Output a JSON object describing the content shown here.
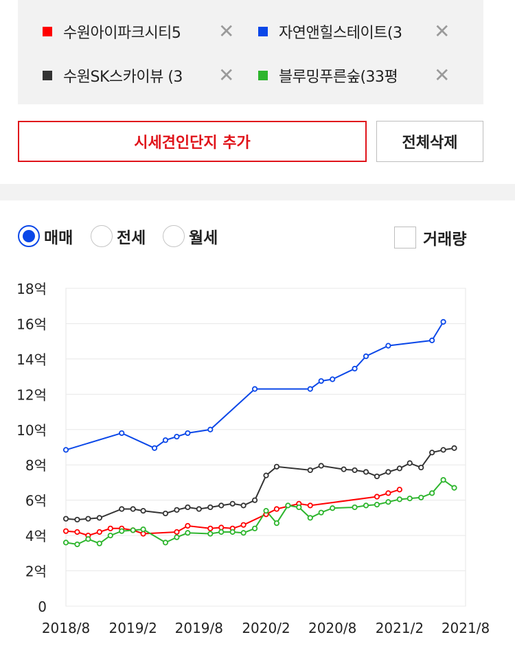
{
  "compare": {
    "items": [
      {
        "name": "수원아이파크시티5",
        "color": "#ff0000",
        "close_icon": "close-icon"
      },
      {
        "name": "자연앤힐스테이트(3",
        "color": "#0a47e8",
        "close_icon": "close-icon"
      },
      {
        "name": "수원SK스카이뷰 (3",
        "color": "#333333",
        "close_icon": "close-icon"
      },
      {
        "name": "블루밍푸른숲(33평",
        "color": "#2db52d",
        "close_icon": "close-icon"
      }
    ],
    "close_glyph": "✕"
  },
  "buttons": {
    "add_label": "시세견인단지 추가",
    "delete_all_label": "전체삭제"
  },
  "options": {
    "radios": [
      {
        "label": "매매",
        "selected": true
      },
      {
        "label": "전세",
        "selected": false
      },
      {
        "label": "월세",
        "selected": false
      }
    ],
    "volume_label": "거래량",
    "volume_checked": false
  },
  "chart_data": {
    "type": "line",
    "title": "",
    "xlabel": "",
    "ylabel": "",
    "unit": "억",
    "ylim": [
      0,
      18
    ],
    "yticks": [
      0,
      2,
      4,
      6,
      8,
      10,
      12,
      14,
      16,
      18
    ],
    "ytick_labels": [
      "0",
      "2억",
      "4억",
      "6억",
      "8억",
      "10억",
      "12억",
      "14억",
      "16억",
      "18억"
    ],
    "xlim": [
      "2018-08",
      "2021-08"
    ],
    "xticks": [
      "2018-08",
      "2019-02",
      "2019-08",
      "2020-02",
      "2020-08",
      "2021-02",
      "2021-08"
    ],
    "xtick_labels": [
      "2018/8",
      "2019/2",
      "2019/8",
      "2020/2",
      "2020/8",
      "2021/2",
      "2021/8"
    ],
    "grid": true,
    "series": [
      {
        "name": "수원아이파크시티5",
        "color": "#ff0000",
        "points": [
          [
            "2018-08-01",
            4.25
          ],
          [
            "2018-09-01",
            4.2
          ],
          [
            "2018-10-01",
            4.0
          ],
          [
            "2018-11-01",
            4.2
          ],
          [
            "2018-12-01",
            4.4
          ],
          [
            "2019-01-01",
            4.4
          ],
          [
            "2019-02-01",
            4.3
          ],
          [
            "2019-03-01",
            4.1
          ],
          [
            "2019-06-01",
            4.2
          ],
          [
            "2019-07-01",
            4.55
          ],
          [
            "2019-09-01",
            4.4
          ],
          [
            "2019-10-01",
            4.45
          ],
          [
            "2019-11-01",
            4.4
          ],
          [
            "2019-12-01",
            4.6
          ],
          [
            "2020-02-01",
            5.2
          ],
          [
            "2020-03-01",
            5.5
          ],
          [
            "2020-05-01",
            5.8
          ],
          [
            "2020-06-01",
            5.7
          ],
          [
            "2020-12-01",
            6.2
          ],
          [
            "2021-01-01",
            6.4
          ],
          [
            "2021-02-01",
            6.6
          ]
        ]
      },
      {
        "name": "자연앤힐스테이트(3",
        "color": "#0a47e8",
        "points": [
          [
            "2018-08-01",
            8.85
          ],
          [
            "2019-01-01",
            9.8
          ],
          [
            "2019-04-01",
            8.95
          ],
          [
            "2019-05-01",
            9.4
          ],
          [
            "2019-06-01",
            9.6
          ],
          [
            "2019-07-01",
            9.8
          ],
          [
            "2019-09-01",
            10.0
          ],
          [
            "2020-01-01",
            12.3
          ],
          [
            "2020-06-01",
            12.3
          ],
          [
            "2020-07-01",
            12.75
          ],
          [
            "2020-08-01",
            12.85
          ],
          [
            "2020-10-01",
            13.45
          ],
          [
            "2020-11-01",
            14.15
          ],
          [
            "2021-01-01",
            14.75
          ],
          [
            "2021-05-01",
            15.05
          ],
          [
            "2021-06-01",
            16.1
          ]
        ]
      },
      {
        "name": "수원SK스카이뷰 (3",
        "color": "#333333",
        "points": [
          [
            "2018-08-01",
            4.95
          ],
          [
            "2018-09-01",
            4.9
          ],
          [
            "2018-10-01",
            4.95
          ],
          [
            "2018-11-01",
            5.0
          ],
          [
            "2019-01-01",
            5.5
          ],
          [
            "2019-02-01",
            5.5
          ],
          [
            "2019-03-01",
            5.4
          ],
          [
            "2019-05-01",
            5.25
          ],
          [
            "2019-06-01",
            5.45
          ],
          [
            "2019-07-01",
            5.6
          ],
          [
            "2019-08-01",
            5.5
          ],
          [
            "2019-09-01",
            5.6
          ],
          [
            "2019-10-01",
            5.7
          ],
          [
            "2019-11-01",
            5.8
          ],
          [
            "2019-12-01",
            5.7
          ],
          [
            "2020-01-01",
            6.0
          ],
          [
            "2020-02-01",
            7.4
          ],
          [
            "2020-03-01",
            7.9
          ],
          [
            "2020-06-01",
            7.7
          ],
          [
            "2020-07-01",
            7.95
          ],
          [
            "2020-09-01",
            7.75
          ],
          [
            "2020-10-01",
            7.7
          ],
          [
            "2020-11-01",
            7.6
          ],
          [
            "2020-12-01",
            7.35
          ],
          [
            "2021-01-01",
            7.6
          ],
          [
            "2021-02-01",
            7.8
          ],
          [
            "2021-03-01",
            8.1
          ],
          [
            "2021-04-01",
            7.85
          ],
          [
            "2021-05-01",
            8.7
          ],
          [
            "2021-06-01",
            8.85
          ],
          [
            "2021-07-01",
            8.95
          ]
        ]
      },
      {
        "name": "블루밍푸른숲(33평",
        "color": "#2db52d",
        "points": [
          [
            "2018-08-01",
            3.6
          ],
          [
            "2018-09-01",
            3.5
          ],
          [
            "2018-10-01",
            3.8
          ],
          [
            "2018-11-01",
            3.55
          ],
          [
            "2018-12-01",
            4.0
          ],
          [
            "2019-01-01",
            4.25
          ],
          [
            "2019-02-01",
            4.3
          ],
          [
            "2019-03-01",
            4.35
          ],
          [
            "2019-05-01",
            3.6
          ],
          [
            "2019-06-01",
            3.9
          ],
          [
            "2019-07-01",
            4.15
          ],
          [
            "2019-09-01",
            4.1
          ],
          [
            "2019-10-01",
            4.2
          ],
          [
            "2019-11-01",
            4.2
          ],
          [
            "2019-12-01",
            4.15
          ],
          [
            "2020-01-01",
            4.4
          ],
          [
            "2020-02-01",
            5.4
          ],
          [
            "2020-03-01",
            4.7
          ],
          [
            "2020-04-01",
            5.7
          ],
          [
            "2020-05-01",
            5.6
          ],
          [
            "2020-06-01",
            5.0
          ],
          [
            "2020-07-01",
            5.3
          ],
          [
            "2020-08-01",
            5.55
          ],
          [
            "2020-10-01",
            5.6
          ],
          [
            "2020-11-01",
            5.7
          ],
          [
            "2020-12-01",
            5.75
          ],
          [
            "2021-01-01",
            5.9
          ],
          [
            "2021-02-01",
            6.05
          ],
          [
            "2021-03-01",
            6.1
          ],
          [
            "2021-04-01",
            6.15
          ],
          [
            "2021-05-01",
            6.4
          ],
          [
            "2021-06-01",
            7.15
          ],
          [
            "2021-07-01",
            6.7
          ]
        ]
      }
    ]
  }
}
